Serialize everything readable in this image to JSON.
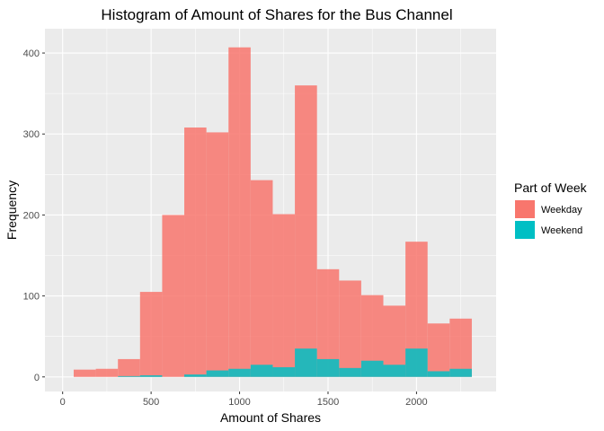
{
  "chart_data": {
    "type": "bar",
    "subtype": "histogram",
    "title": "Histogram of Amount of Shares for the Bus Channel",
    "xlabel": "Amount of Shares",
    "ylabel": "Frequency",
    "xlim": [
      -100,
      2450
    ],
    "ylim": [
      -18,
      430
    ],
    "x_ticks": [
      0,
      500,
      1000,
      1500,
      2000
    ],
    "y_ticks": [
      0,
      100,
      200,
      300,
      400
    ],
    "grid": true,
    "legend": {
      "title": "Part of Week",
      "position": "right"
    },
    "bin_width": 125,
    "bins": [
      [
        62.5,
        187.5
      ],
      [
        187.5,
        312.5
      ],
      [
        312.5,
        437.5
      ],
      [
        437.5,
        562.5
      ],
      [
        562.5,
        687.5
      ],
      [
        687.5,
        812.5
      ],
      [
        812.5,
        937.5
      ],
      [
        937.5,
        1062.5
      ],
      [
        1062.5,
        1187.5
      ],
      [
        1187.5,
        1312.5
      ],
      [
        1312.5,
        1437.5
      ],
      [
        1437.5,
        1562.5
      ],
      [
        1562.5,
        1687.5
      ],
      [
        1687.5,
        1812.5
      ],
      [
        1812.5,
        1937.5
      ],
      [
        1937.5,
        2062.5
      ],
      [
        2062.5,
        2187.5
      ],
      [
        2187.5,
        2312.5
      ]
    ],
    "series": [
      {
        "name": "Weekday",
        "color": "#F8766D",
        "values": [
          9,
          10,
          22,
          105,
          200,
          308,
          302,
          407,
          243,
          201,
          360,
          133,
          119,
          101,
          88,
          167,
          66,
          72
        ]
      },
      {
        "name": "Weekend",
        "color": "#00BFC4",
        "values": [
          0,
          0,
          1,
          2,
          0,
          3,
          8,
          10,
          15,
          12,
          35,
          22,
          11,
          20,
          15,
          35,
          7,
          10
        ]
      }
    ]
  }
}
